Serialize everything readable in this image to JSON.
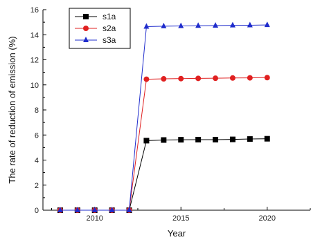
{
  "chart_data": {
    "type": "line",
    "title": "",
    "xlabel": "Year",
    "ylabel": "The rate of reduction of emission (%)",
    "xlim": [
      2007,
      2022.5
    ],
    "ylim": [
      0,
      16
    ],
    "x_ticks": [
      2010,
      2015,
      2020
    ],
    "y_ticks": [
      0,
      2,
      4,
      6,
      8,
      10,
      12,
      14,
      16
    ],
    "grid": false,
    "legend_position": "top-left",
    "x": [
      2008,
      2009,
      2010,
      2011,
      2012,
      2013,
      2014,
      2015,
      2016,
      2017,
      2018,
      2019,
      2020
    ],
    "series": [
      {
        "name": "s1a",
        "color": "#000000",
        "marker": "square",
        "values": [
          0,
          0,
          0,
          0,
          0,
          5.55,
          5.6,
          5.62,
          5.63,
          5.63,
          5.65,
          5.68,
          5.7
        ]
      },
      {
        "name": "s2a",
        "color": "#e02020",
        "marker": "circle",
        "values": [
          0,
          0,
          0,
          0,
          0,
          10.45,
          10.48,
          10.5,
          10.52,
          10.53,
          10.55,
          10.56,
          10.58
        ]
      },
      {
        "name": "s3a",
        "color": "#1f2ccc",
        "marker": "triangle",
        "values": [
          0,
          0,
          0,
          0,
          0,
          14.65,
          14.68,
          14.7,
          14.72,
          14.73,
          14.75,
          14.76,
          14.78
        ]
      }
    ]
  }
}
